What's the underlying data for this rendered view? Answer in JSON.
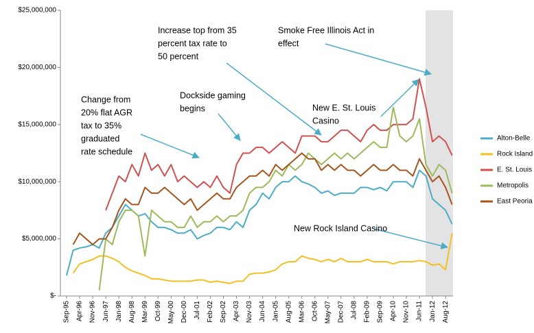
{
  "chart_data": {
    "type": "line",
    "categories": [
      "Sep-95",
      null,
      "Apr-96",
      null,
      "Nov-96",
      null,
      "Jun-97",
      null,
      "Jan-98",
      null,
      "Aug-98",
      null,
      "Mar-99",
      null,
      "Oct-99",
      null,
      "May-00",
      null,
      "Dec-00",
      null,
      "Jul-01",
      null,
      "Feb-02",
      null,
      "Sep-02",
      null,
      "Apr-03",
      null,
      "Nov-03",
      null,
      "Jun-04",
      null,
      "Jan-05",
      null,
      "Aug-05",
      null,
      "Mar-06",
      null,
      "Oct-06",
      null,
      "May-07",
      null,
      "Dec-07",
      null,
      "Jul-08",
      null,
      "Feb-09",
      null,
      "Sep-09",
      null,
      "Apr-10",
      null,
      "Nov-10",
      null,
      "Jun-11",
      null,
      "Jan-12",
      null,
      "Aug-12",
      null
    ],
    "ylim": [
      0,
      25000000
    ],
    "yticks": [
      {
        "value": 0,
        "label": "$-"
      },
      {
        "value": 5000000,
        "label": "$5,000,000"
      },
      {
        "value": 10000000,
        "label": "$10,000,000"
      },
      {
        "value": 15000000,
        "label": "$15,000,000"
      },
      {
        "value": 20000000,
        "label": "$20,000,000"
      },
      {
        "value": 25000000,
        "label": "$25,000,000"
      }
    ],
    "series": [
      {
        "name": "Alton-Belle",
        "color": "#4bacc6",
        "values": [
          1800000,
          4000000,
          4200000,
          4300000,
          4500000,
          4200000,
          5500000,
          6000000,
          7000000,
          8000000,
          7500000,
          7000000,
          7200000,
          6500000,
          6000000,
          6000000,
          5800000,
          5500000,
          5500000,
          5800000,
          5000000,
          5300000,
          5500000,
          6000000,
          6000000,
          5800000,
          6500000,
          6000000,
          7500000,
          8000000,
          9000000,
          8500000,
          9500000,
          10000000,
          10000000,
          10500000,
          10000000,
          9800000,
          9500000,
          9000000,
          9200000,
          8800000,
          9000000,
          9000000,
          9000000,
          9500000,
          9500000,
          9300000,
          9500000,
          9200000,
          10000000,
          10000000,
          10000000,
          9500000,
          11000000,
          10500000,
          8500000,
          8000000,
          7500000,
          6300000
        ]
      },
      {
        "name": "Rock Island",
        "color": "#f5bf22",
        "values": [
          null,
          2000000,
          2800000,
          3000000,
          3200000,
          3500000,
          3500000,
          3300000,
          3000000,
          2500000,
          2200000,
          2000000,
          1800000,
          1500000,
          1500000,
          1400000,
          1300000,
          1300000,
          1300000,
          1300000,
          1400000,
          1400000,
          1200000,
          1300000,
          1200000,
          1100000,
          1300000,
          1300000,
          1900000,
          2000000,
          2000000,
          2100000,
          2300000,
          2800000,
          3000000,
          3000000,
          3500000,
          3300000,
          3200000,
          3000000,
          3200000,
          3000000,
          3300000,
          3000000,
          3000000,
          3000000,
          3200000,
          3000000,
          3000000,
          3000000,
          2800000,
          3000000,
          3000000,
          3000000,
          3100000,
          3000000,
          2700000,
          2800000,
          2300000,
          5500000
        ]
      },
      {
        "name": "E. St. Louis",
        "color": "#d0504f",
        "values": [
          null,
          null,
          null,
          null,
          null,
          null,
          7500000,
          9000000,
          10500000,
          10000000,
          11500000,
          10500000,
          12500000,
          11000000,
          11500000,
          10500000,
          11500000,
          10000000,
          10500000,
          10000000,
          9500000,
          10000000,
          9500000,
          10500000,
          9500000,
          9000000,
          11500000,
          12500000,
          12500000,
          13000000,
          13000000,
          12500000,
          13000000,
          13500000,
          13000000,
          12500000,
          14000000,
          14000000,
          14000000,
          13500000,
          13500000,
          14000000,
          14500000,
          14500000,
          14000000,
          13500000,
          14500000,
          15000000,
          14500000,
          14500000,
          15000000,
          15000000,
          15000000,
          15500000,
          19000000,
          16500000,
          13500000,
          14000000,
          13500000,
          12300000
        ]
      },
      {
        "name": "Metropolis",
        "color": "#9bbb59",
        "values": [
          null,
          null,
          null,
          null,
          null,
          500000,
          5000000,
          4500000,
          6500000,
          7500000,
          7500000,
          7000000,
          3500000,
          7500000,
          7000000,
          6500000,
          6500000,
          6000000,
          6000000,
          7000000,
          6000000,
          6500000,
          6500000,
          7000000,
          6500000,
          7000000,
          7000000,
          7500000,
          9000000,
          9500000,
          9500000,
          10000000,
          11000000,
          10500000,
          11500000,
          11000000,
          11500000,
          12500000,
          12000000,
          11500000,
          12000000,
          12500000,
          12000000,
          12500000,
          12000000,
          12500000,
          13000000,
          13500000,
          13000000,
          13000000,
          16500000,
          14000000,
          13500000,
          14000000,
          15500000,
          11500000,
          10500000,
          11500000,
          11000000,
          9000000
        ]
      },
      {
        "name": "East Peoria",
        "color": "#a5541d",
        "values": [
          null,
          4500000,
          5500000,
          5000000,
          4500000,
          5000000,
          5000000,
          6000000,
          7500000,
          8500000,
          8000000,
          8000000,
          9500000,
          9000000,
          9000000,
          9500000,
          9000000,
          8500000,
          8000000,
          8500000,
          7500000,
          8000000,
          8500000,
          9000000,
          8500000,
          8500000,
          9500000,
          10000000,
          10500000,
          10500000,
          11000000,
          10500000,
          11500000,
          11000000,
          11500000,
          12000000,
          12500000,
          12000000,
          12000000,
          11000000,
          11500000,
          11000000,
          11500000,
          11000000,
          11000000,
          10500000,
          11000000,
          11500000,
          11000000,
          11000000,
          11500000,
          11000000,
          11000000,
          10500000,
          12000000,
          11000000,
          10000000,
          10500000,
          9500000,
          8000000
        ]
      }
    ],
    "annotations": [
      {
        "lines": [
          "Change from",
          "20% flat AGR",
          "tax  to 35%",
          "graduated",
          "rate schedule"
        ]
      },
      {
        "lines": [
          "Dockside gaming",
          "begins"
        ]
      },
      {
        "lines": [
          "Increase top from 35",
          "percent  tax rate to",
          "50 percent"
        ]
      },
      {
        "lines": [
          "Smoke Free Illinois Act in",
          "effect"
        ]
      },
      {
        "lines": [
          "New E. St. Louis",
          "Casino"
        ]
      },
      {
        "lines": [
          "New Rock Island Casino"
        ]
      }
    ]
  }
}
